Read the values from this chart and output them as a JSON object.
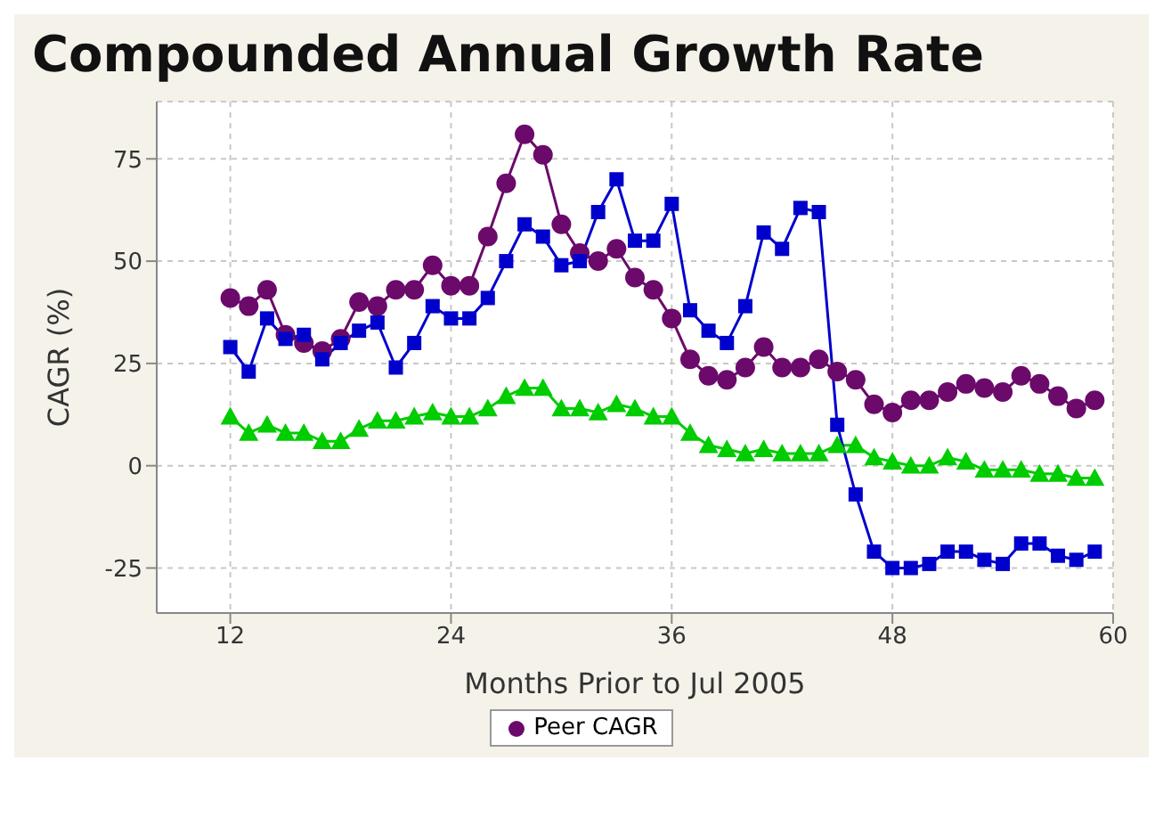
{
  "chart_data": {
    "type": "line",
    "title": "Compounded Annual Growth Rate",
    "xlabel": "Months Prior to Jul 2005",
    "ylabel": "CAGR (%)",
    "x": [
      12,
      13,
      14,
      15,
      16,
      17,
      18,
      19,
      20,
      21,
      22,
      23,
      24,
      25,
      26,
      27,
      28,
      29,
      30,
      31,
      32,
      33,
      34,
      35,
      36,
      37,
      38,
      39,
      40,
      41,
      42,
      43,
      44,
      45,
      46,
      47,
      48,
      49,
      50,
      51,
      52,
      53,
      54,
      55,
      56,
      57,
      58,
      59
    ],
    "series": [
      {
        "color": "#0000cc",
        "marker": "square",
        "values": [
          29,
          23,
          36,
          31,
          32,
          26,
          30,
          33,
          35,
          24,
          30,
          39,
          36,
          36,
          41,
          50,
          59,
          56,
          49,
          50,
          62,
          70,
          55,
          55,
          64,
          38,
          33,
          30,
          39,
          57,
          53,
          63,
          62,
          10,
          -7,
          -21,
          -25,
          -25,
          -24,
          -21,
          -21,
          -23,
          -24,
          -19,
          -19,
          -22,
          -23,
          -21
        ]
      },
      {
        "name": "Peer CAGR",
        "color": "#6b0a6b",
        "marker": "circle",
        "values": [
          41,
          39,
          43,
          32,
          30,
          28,
          31,
          40,
          39,
          43,
          43,
          49,
          44,
          44,
          56,
          69,
          81,
          76,
          59,
          52,
          50,
          53,
          46,
          43,
          36,
          26,
          22,
          21,
          24,
          29,
          24,
          24,
          26,
          23,
          21,
          15,
          13,
          16,
          16,
          18,
          20,
          19,
          18,
          22,
          20,
          17,
          14,
          16
        ]
      },
      {
        "color": "#00cc00",
        "marker": "triangle",
        "values": [
          12,
          8,
          10,
          8,
          8,
          6,
          6,
          9,
          11,
          11,
          12,
          13,
          12,
          12,
          14,
          17,
          19,
          19,
          14,
          14,
          13,
          15,
          14,
          12,
          12,
          8,
          5,
          4,
          3,
          4,
          3,
          3,
          3,
          5,
          5,
          2,
          1,
          0,
          0,
          2,
          1,
          -1,
          -1,
          -1,
          -2,
          -2,
          -3,
          -3
        ]
      }
    ],
    "xlim": [
      8,
      60
    ],
    "xticks": [
      12,
      24,
      36,
      48,
      60
    ],
    "ylim": [
      -36,
      89
    ],
    "yticks": [
      -25,
      0,
      25,
      50,
      75
    ],
    "grid": true,
    "legend": "bottom",
    "line_style": "solid"
  }
}
